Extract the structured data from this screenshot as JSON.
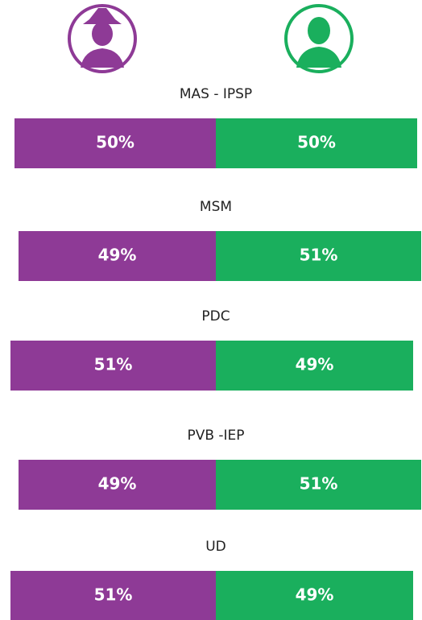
{
  "chart_data": {
    "type": "bar",
    "categories": [
      "MAS - IPSP",
      "MSM",
      "PDC",
      "PVB -IEP",
      "UD"
    ],
    "series": [
      {
        "color": "#8e3a96",
        "values": [
          50,
          49,
          51,
          49,
          51
        ],
        "value_labels": [
          "50%",
          "49%",
          "51%",
          "49%",
          "51%"
        ]
      },
      {
        "color": "#1aaf5d",
        "values": [
          50,
          51,
          49,
          51,
          49
        ],
        "value_labels": [
          "50%",
          "51%",
          "49%",
          "51%",
          "49%"
        ]
      }
    ]
  }
}
